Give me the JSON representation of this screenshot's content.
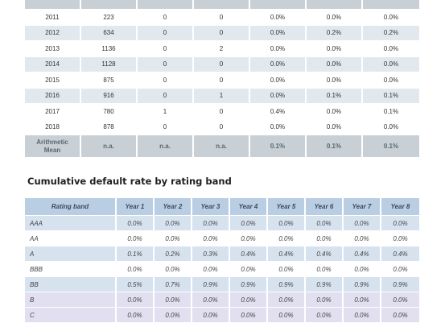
{
  "top_table": {
    "rows": [
      {
        "year": "2011",
        "c1": "223",
        "c2": "0",
        "c3": "0",
        "c4": "0.0%",
        "c5": "0.0%",
        "c6": "0.0%"
      },
      {
        "year": "2012",
        "c1": "634",
        "c2": "0",
        "c3": "0",
        "c4": "0.0%",
        "c5": "0.2%",
        "c6": "0.2%"
      },
      {
        "year": "2013",
        "c1": "1136",
        "c2": "0",
        "c3": "2",
        "c4": "0.0%",
        "c5": "0.0%",
        "c6": "0.0%"
      },
      {
        "year": "2014",
        "c1": "1128",
        "c2": "0",
        "c3": "0",
        "c4": "0.0%",
        "c5": "0.0%",
        "c6": "0.0%"
      },
      {
        "year": "2015",
        "c1": "875",
        "c2": "0",
        "c3": "0",
        "c4": "0.0%",
        "c5": "0.0%",
        "c6": "0.0%"
      },
      {
        "year": "2016",
        "c1": "916",
        "c2": "0",
        "c3": "1",
        "c4": "0.0%",
        "c5": "0.1%",
        "c6": "0.1%"
      },
      {
        "year": "2017",
        "c1": "780",
        "c2": "1",
        "c3": "0",
        "c4": "0.4%",
        "c5": "0.0%",
        "c6": "0.1%"
      },
      {
        "year": "2018",
        "c1": "878",
        "c2": "0",
        "c3": "0",
        "c4": "0.0%",
        "c5": "0.0%",
        "c6": "0.0%"
      }
    ],
    "mean": {
      "label_line1": "Arithmetic",
      "label_line2": "Mean",
      "c1": "n.a.",
      "c2": "n.a.",
      "c3": "n.a.",
      "c4": "0.1%",
      "c5": "0.1%",
      "c6": "0.1%"
    }
  },
  "section_title": "Cumulative default rate by rating band",
  "band_table": {
    "headers": [
      "Rating band",
      "Year 1",
      "Year 2",
      "Year 3",
      "Year 4",
      "Year 5",
      "Year 6",
      "Year 7",
      "Year 8"
    ],
    "rows": [
      {
        "band": "AAA",
        "values": [
          "0.0%",
          "0.0%",
          "0.0%",
          "0.0%",
          "0.0%",
          "0.0%",
          "0.0%",
          "0.0%"
        ]
      },
      {
        "band": "AA",
        "values": [
          "0.0%",
          "0.0%",
          "0.0%",
          "0.0%",
          "0.0%",
          "0.0%",
          "0.0%",
          "0.0%"
        ]
      },
      {
        "band": "A",
        "values": [
          "0.1%",
          "0.2%",
          "0.3%",
          "0.4%",
          "0.4%",
          "0.4%",
          "0.4%",
          "0.4%"
        ]
      },
      {
        "band": "BBB",
        "values": [
          "0.0%",
          "0.0%",
          "0.0%",
          "0.0%",
          "0.0%",
          "0.0%",
          "0.0%",
          "0.0%"
        ]
      },
      {
        "band": "BB",
        "values": [
          "0.5%",
          "0.7%",
          "0.9%",
          "0.9%",
          "0.9%",
          "0.9%",
          "0.9%",
          "0.9%"
        ]
      },
      {
        "band": "B",
        "values": [
          "0.0%",
          "0.0%",
          "0.0%",
          "0.0%",
          "0.0%",
          "0.0%",
          "0.0%",
          "0.0%"
        ]
      },
      {
        "band": "C",
        "values": [
          "0.0%",
          "0.0%",
          "0.0%",
          "0.0%",
          "0.0%",
          "0.0%",
          "0.0%",
          "0.0%"
        ]
      }
    ]
  }
}
